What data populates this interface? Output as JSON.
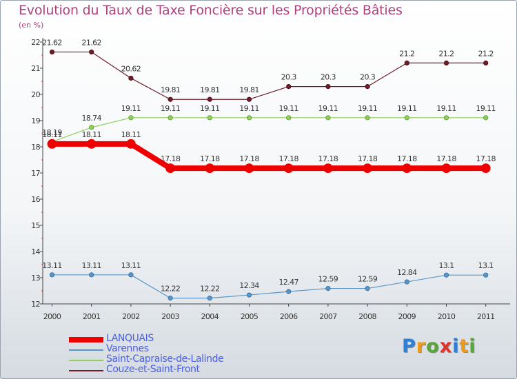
{
  "title": "Evolution du Taux de Taxe Foncière sur les Propriétés Bâties",
  "subtitle": "(en %)",
  "logo": {
    "letters": [
      "P",
      "r",
      "o",
      "x",
      "i",
      "t",
      "i"
    ],
    "colors": [
      "#2f7fd6",
      "#f09a1a",
      "#5aa63a",
      "#e0332e",
      "#2f7fd6",
      "#f09a1a",
      "#5aa63a"
    ]
  },
  "chart_data": {
    "type": "line",
    "title": "Evolution du Taux de Taxe Foncière sur les Propriétés Bâties",
    "ylabel": "(en %)",
    "xlabel": "",
    "ylim": [
      12,
      22
    ],
    "yticks": [
      12,
      13,
      14,
      15,
      16,
      17,
      18,
      19,
      20,
      21,
      22
    ],
    "categories": [
      "2000",
      "2001",
      "2002",
      "2003",
      "2004",
      "2005",
      "2006",
      "2007",
      "2008",
      "2009",
      "2010",
      "2011"
    ],
    "series": [
      {
        "name": "Couze-et-Saint-Front",
        "color": "#6e1c2a",
        "values": [
          21.62,
          21.62,
          20.62,
          19.81,
          19.81,
          19.81,
          20.3,
          20.3,
          20.3,
          21.2,
          21.2,
          21.2
        ],
        "labels": [
          "21.62",
          "21.62",
          "20.62",
          "19.81",
          "19.81",
          "19.81",
          "20.3",
          "20.3",
          "20.3",
          "21.2",
          "21.2",
          "21.2"
        ]
      },
      {
        "name": "Saint-Capraise-de-Lalinde",
        "color": "#8fd05a",
        "values": [
          18.19,
          18.74,
          19.11,
          19.11,
          19.11,
          19.11,
          19.11,
          19.11,
          19.11,
          19.11,
          19.11,
          19.11
        ],
        "labels": [
          "18.19",
          "18.74",
          "19.11",
          "19.11",
          "19.11",
          "19.11",
          "19.11",
          "19.11",
          "19.11",
          "19.11",
          "19.11",
          "19.11"
        ]
      },
      {
        "name": "LANQUAIS",
        "color": "#ee0000",
        "values": [
          18.11,
          18.11,
          18.11,
          17.18,
          17.18,
          17.18,
          17.18,
          17.18,
          17.18,
          17.18,
          17.18,
          17.18
        ],
        "labels": [
          "18.11",
          "18.11",
          "18.11",
          "17.18",
          "17.18",
          "17.18",
          "17.18",
          "17.18",
          "17.18",
          "17.18",
          "17.18",
          "17.18"
        ]
      },
      {
        "name": "Varennes",
        "color": "#5a96c8",
        "values": [
          13.11,
          13.11,
          13.11,
          12.22,
          12.22,
          12.34,
          12.47,
          12.59,
          12.59,
          12.84,
          13.1,
          13.1
        ],
        "labels": [
          "13.11",
          "13.11",
          "13.11",
          "12.22",
          "12.22",
          "12.34",
          "12.47",
          "12.59",
          "12.59",
          "12.84",
          "13.1",
          "13.1"
        ]
      }
    ],
    "legend": {
      "placement": "bottom-left",
      "entries": [
        "LANQUAIS",
        "Varennes",
        "Saint-Capraise-de-Lalinde",
        "Couze-et-Saint-Front"
      ]
    },
    "grid": false
  }
}
